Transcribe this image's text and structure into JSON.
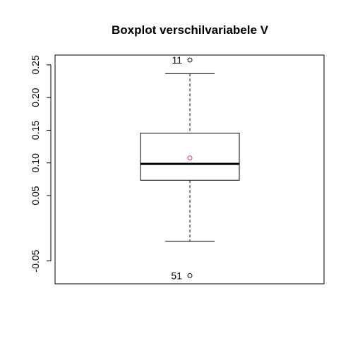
{
  "chart_data": {
    "type": "boxplot",
    "title": "Boxplot verschilvariabele V",
    "xlabel": "",
    "ylabel": "",
    "ylim": [
      -0.085,
      0.265
    ],
    "y_ticks": [
      -0.05,
      0.05,
      0.1,
      0.15,
      0.2,
      0.25
    ],
    "y_tick_labels": [
      "-0.05",
      "0.05",
      "0.10",
      "0.15",
      "0.20",
      "0.25"
    ],
    "grid": false,
    "box": {
      "lower_whisker": -0.02,
      "q1": 0.0735,
      "median": 0.0985,
      "q3": 0.1455,
      "upper_whisker": 0.2365,
      "mean": 0.1075
    },
    "outliers": [
      {
        "label": "11",
        "value": 0.2575
      },
      {
        "label": "51",
        "value": -0.0725
      }
    ],
    "colors": {
      "mean_marker": "#e0303a",
      "box": "#000000"
    }
  }
}
